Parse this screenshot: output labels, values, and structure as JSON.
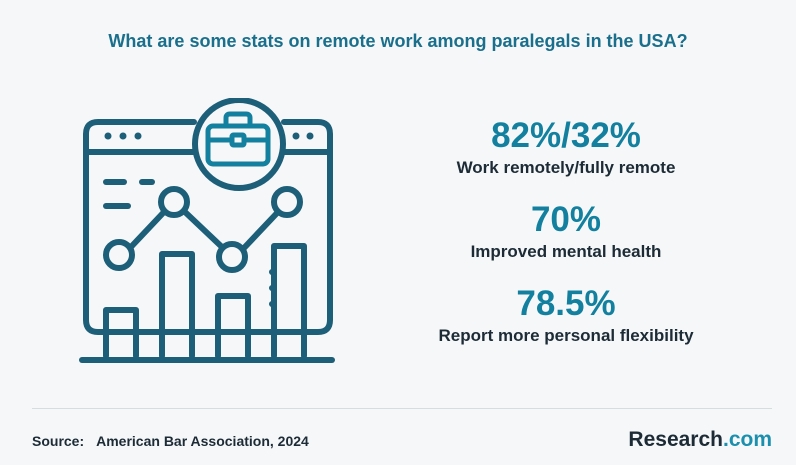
{
  "title": "What are some stats on remote work among paralegals in the USA?",
  "stats": [
    {
      "value": "82%/32%",
      "label": "Work remotely/fully remote"
    },
    {
      "value": "70%",
      "label": "Improved mental health"
    },
    {
      "value": "78.5%",
      "label": "Report more personal flexibility"
    }
  ],
  "footer": {
    "source_label": "Source:",
    "source_text": "American Bar Association, 2024",
    "brand_main": "Research",
    "brand_accent": ".com"
  },
  "colors": {
    "dark_teal": "#1d5e78",
    "accent": "#12809e",
    "text": "#1d2b36"
  },
  "icons": [
    "dashboard-illustration-icon",
    "briefcase-icon",
    "bar-chart-icon",
    "line-chart-icon"
  ]
}
